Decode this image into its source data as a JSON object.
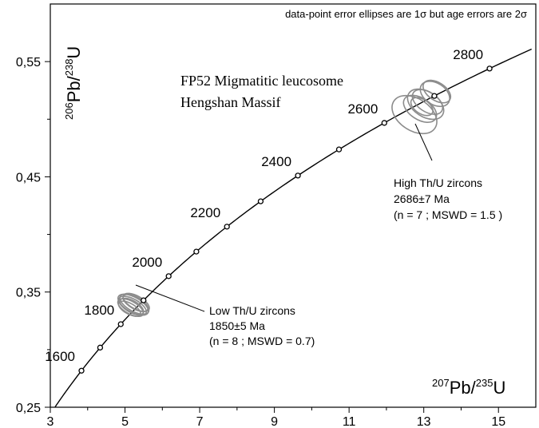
{
  "chart_data": {
    "type": "scatter",
    "title": "FP52 Migmatitic leucosome",
    "subtitle": "Hengshan Massif",
    "note": "data-point error ellipses are 1σ but age errors are 2σ",
    "xlabel": {
      "sup": "207",
      "main": "Pb/",
      "sup2": "235",
      "tail": "U"
    },
    "ylabel": {
      "sup": "206",
      "main": "Pb/",
      "sup2": "238",
      "tail": "U"
    },
    "xlim": [
      3,
      16
    ],
    "ylim": [
      0.25,
      0.6
    ],
    "x_ticks": [
      3,
      5,
      7,
      9,
      11,
      13,
      15
    ],
    "x_tick_labels": [
      "3",
      "5",
      "7",
      "9",
      "11",
      "13",
      "15"
    ],
    "y_ticks": [
      0.25,
      0.35,
      0.45,
      0.55
    ],
    "y_tick_labels": [
      "0,25",
      "0,35",
      "0,45",
      "0,55"
    ],
    "concordia_ages_ma": [
      1600,
      1700,
      1800,
      1900,
      2000,
      2100,
      2200,
      2300,
      2400,
      2500,
      2600,
      2700,
      2800
    ],
    "concordia_labels": [
      "1600",
      "1800",
      "2000",
      "2200",
      "2400",
      "2600",
      "2800"
    ],
    "ellipse_groups": [
      {
        "name": "Low Th/U zircons",
        "color": "#8c8c8c",
        "ellipses": [
          {
            "x": 5.15,
            "y": 0.3365,
            "rx": 0.35,
            "ry": 0.0185,
            "deg": 13
          },
          {
            "x": 5.2,
            "y": 0.338,
            "rx": 0.38,
            "ry": 0.02,
            "deg": 13
          },
          {
            "x": 5.25,
            "y": 0.3395,
            "rx": 0.4,
            "ry": 0.021,
            "deg": 13
          },
          {
            "x": 5.18,
            "y": 0.3375,
            "rx": 0.33,
            "ry": 0.017,
            "deg": 13
          },
          {
            "x": 5.3,
            "y": 0.341,
            "rx": 0.36,
            "ry": 0.019,
            "deg": 13
          },
          {
            "x": 5.12,
            "y": 0.3355,
            "rx": 0.3,
            "ry": 0.016,
            "deg": 13
          },
          {
            "x": 5.22,
            "y": 0.339,
            "rx": 0.42,
            "ry": 0.022,
            "deg": 13
          },
          {
            "x": 5.28,
            "y": 0.3405,
            "rx": 0.34,
            "ry": 0.018,
            "deg": 13
          }
        ]
      },
      {
        "name": "High Th/U zircons",
        "color": "#8c8c8c",
        "ellipses": [
          {
            "x": 12.9,
            "y": 0.509,
            "rx": 0.6,
            "ry": 0.024,
            "deg": 12
          },
          {
            "x": 13.1,
            "y": 0.515,
            "rx": 0.55,
            "ry": 0.022,
            "deg": 12
          },
          {
            "x": 12.75,
            "y": 0.504,
            "rx": 0.9,
            "ry": 0.032,
            "deg": 12
          },
          {
            "x": 13.3,
            "y": 0.522,
            "rx": 0.6,
            "ry": 0.021,
            "deg": 12
          },
          {
            "x": 12.95,
            "y": 0.511,
            "rx": 0.4,
            "ry": 0.016,
            "deg": 12
          },
          {
            "x": 13.35,
            "y": 0.524,
            "rx": 0.5,
            "ry": 0.02,
            "deg": 12
          },
          {
            "x": 13.05,
            "y": 0.513,
            "rx": 0.7,
            "ry": 0.026,
            "deg": 12
          }
        ]
      }
    ],
    "annotations": [
      {
        "name": "Low Th/U zircons",
        "lines": [
          "Low Th/U zircons",
          "1850±5 Ma",
          "(n = 8 ; MSWD = 0.7)"
        ]
      },
      {
        "name": "High Th/U zircons",
        "lines": [
          "High Th/U zircons",
          "2686±7 Ma",
          "(n = 7 ; MSWD = 1.5 )"
        ]
      }
    ]
  }
}
